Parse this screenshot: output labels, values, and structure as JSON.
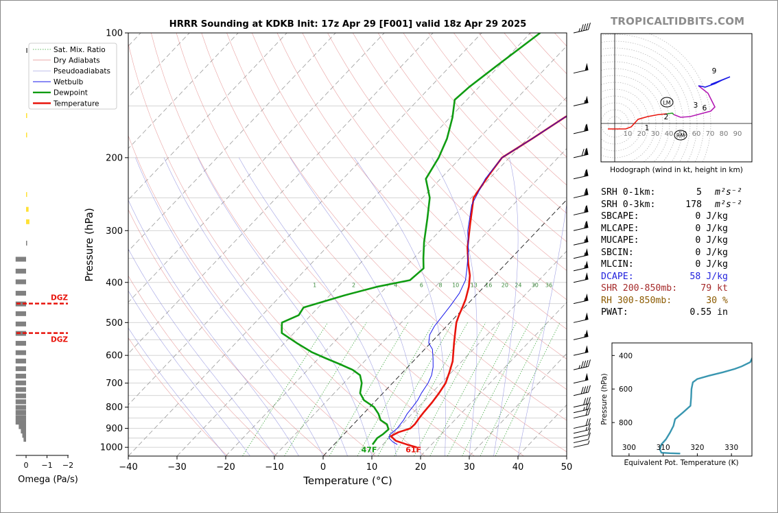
{
  "title": "HRRR Sounding at KDKB Init: 17z Apr 29 [F001] valid 18z Apr 29 2025",
  "brand": "TROPICALTIDBITS.COM",
  "chart_data": [
    {
      "type": "line",
      "name": "skew-t",
      "xlabel": "Temperature (°C)",
      "ylabel": "Pressure (hPa)",
      "xlim": [
        -40,
        50
      ],
      "ylim": [
        1050,
        100
      ],
      "y_scale": "log",
      "x_ticks": [
        -40,
        -30,
        -20,
        -10,
        0,
        10,
        20,
        30,
        40,
        50
      ],
      "x_tick_labels": [
        "−40",
        "−30",
        "−20",
        "−10",
        "0",
        "10",
        "20",
        "30",
        "40",
        "50"
      ],
      "y_ticks": [
        100,
        200,
        300,
        400,
        500,
        600,
        700,
        800,
        900,
        1000
      ],
      "mixing_ratio_labels": [
        "1",
        "2",
        "4",
        "6",
        "8",
        "10",
        "13",
        "16",
        "20",
        "24",
        "30",
        "36"
      ],
      "legend": [
        "Sat. Mix. Ratio",
        "Dry Adiabats",
        "Pseudoadiabats",
        "Wetbulb",
        "Dewpoint",
        "Temperature"
      ],
      "legend_position": "upper-left",
      "series": [
        {
          "name": "Temperature",
          "color": "#e8140c",
          "points": [
            [
              17.5,
              1000
            ],
            [
              15,
              985
            ],
            [
              12,
              965
            ],
            [
              10,
              940
            ],
            [
              10.8,
              920
            ],
            [
              12.5,
              900
            ],
            [
              12.6,
              880
            ],
            [
              12.3,
              850
            ],
            [
              12.1,
              820
            ],
            [
              11.9,
              780
            ],
            [
              11.5,
              740
            ],
            [
              10.9,
              700
            ],
            [
              9.6,
              660
            ],
            [
              8.1,
              620
            ],
            [
              6.5,
              590
            ],
            [
              4.8,
              560
            ],
            [
              3.1,
              530
            ],
            [
              1.3,
              500
            ],
            [
              0.4,
              480
            ],
            [
              -0.4,
              460
            ],
            [
              -1.3,
              440
            ],
            [
              -3.1,
              410
            ],
            [
              -5.1,
              385
            ],
            [
              -7.8,
              360
            ],
            [
              -11,
              330
            ],
            [
              -15,
              290
            ],
            [
              -19.5,
              250
            ],
            [
              -20.8,
              220
            ],
            [
              -21.5,
              200
            ],
            [
              -19,
              180
            ],
            [
              -16.5,
              160
            ],
            [
              -12.5,
              140
            ],
            [
              -9,
              125
            ],
            [
              -4.5,
              110
            ],
            [
              0,
              100
            ]
          ]
        },
        {
          "name": "Dewpoint",
          "color": "#109c12",
          "points": [
            [
              7.9,
              985
            ],
            [
              7.6,
              950
            ],
            [
              8.0,
              930
            ],
            [
              8.2,
              905
            ],
            [
              6.9,
              880
            ],
            [
              4.8,
              860
            ],
            [
              3.1,
              830
            ],
            [
              0.9,
              800
            ],
            [
              -2.5,
              770
            ],
            [
              -4.7,
              740
            ],
            [
              -6.3,
              700
            ],
            [
              -8.2,
              670
            ],
            [
              -10.8,
              650
            ],
            [
              -14.5,
              630
            ],
            [
              -18.5,
              610
            ],
            [
              -22.5,
              590
            ],
            [
              -27.5,
              560
            ],
            [
              -32.5,
              530
            ],
            [
              -33.5,
              515
            ],
            [
              -34.5,
              500
            ],
            [
              -32.5,
              480
            ],
            [
              -33,
              460
            ],
            [
              -27,
              430
            ],
            [
              -22,
              410
            ],
            [
              -16.5,
              395
            ],
            [
              -16,
              370
            ],
            [
              -18,
              350
            ],
            [
              -21,
              320
            ],
            [
              -25,
              280
            ],
            [
              -28.5,
              250
            ],
            [
              -33,
              225
            ],
            [
              -34.5,
              200
            ],
            [
              -36.5,
              180
            ],
            [
              -39.5,
              160
            ],
            [
              -42.5,
              145
            ],
            [
              -42,
              135
            ],
            [
              -40.5,
              120
            ],
            [
              -38,
              100
            ]
          ]
        },
        {
          "name": "Wetbulb",
          "color": "#1515ea",
          "points": [
            [
              13,
              985
            ],
            [
              11.5,
              970
            ],
            [
              10,
              950
            ],
            [
              9.5,
              930
            ],
            [
              9.8,
              900
            ],
            [
              9.5,
              860
            ],
            [
              9,
              830
            ],
            [
              8.8,
              800
            ],
            [
              8.5,
              770
            ],
            [
              7.9,
              740
            ],
            [
              7.3,
              700
            ],
            [
              6.5,
              670
            ],
            [
              5.2,
              640
            ],
            [
              3.5,
              610
            ],
            [
              1.6,
              580
            ],
            [
              -0.4,
              560
            ],
            [
              -1.8,
              535
            ],
            [
              -2.5,
              510
            ],
            [
              -2.8,
              485
            ],
            [
              -3.2,
              455
            ],
            [
              -3.8,
              425
            ],
            [
              -5.1,
              395
            ],
            [
              -7.1,
              370
            ],
            [
              -10.3,
              335
            ],
            [
              -14.3,
              300
            ],
            [
              -18.5,
              260
            ],
            [
              -20.8,
              225
            ],
            [
              -21.5,
              200
            ],
            [
              -19,
              180
            ],
            [
              -16.5,
              160
            ],
            [
              -12.8,
              140
            ],
            [
              -9.5,
              125
            ],
            [
              -5,
              110
            ],
            [
              0,
              100
            ]
          ]
        }
      ],
      "annotations": [
        {
          "text": "47F",
          "color": "#109c12",
          "x": 7.9,
          "p": 1005
        },
        {
          "text": "61F",
          "color": "#e8140c",
          "x": 17.0,
          "p": 1005
        }
      ]
    },
    {
      "type": "line",
      "name": "hodograph",
      "xlabel": "Hodograph (wind in kt, height in km)",
      "ring_labels": [
        "10",
        "20",
        "30",
        "40",
        "50",
        "60",
        "70",
        "80",
        "90"
      ],
      "storm_motion_labels": [
        "LM",
        "RM"
      ],
      "height_labels": [
        "1",
        "2",
        "3",
        "6",
        "9"
      ],
      "series": [
        {
          "name": "0-3 km",
          "color": "#e8140c",
          "points": [
            [
              -5,
              -8
            ],
            [
              8,
              -8
            ],
            [
              12,
              -5
            ],
            [
              17,
              6
            ],
            [
              24,
              10
            ],
            [
              32,
              13
            ],
            [
              38,
              14
            ]
          ]
        },
        {
          "name": "3-6 km",
          "color": "#2ca02c",
          "points": [
            [
              38,
              14
            ],
            [
              42,
              15
            ],
            [
              43,
              13
            ]
          ]
        },
        {
          "name": "6-9 km",
          "color": "#b41ab4",
          "points": [
            [
              43,
              13
            ],
            [
              48,
              9
            ],
            [
              55,
              10
            ],
            [
              70,
              18
            ],
            [
              73,
              24
            ],
            [
              68,
              44
            ],
            [
              61,
              55
            ]
          ]
        },
        {
          "name": "9+ km",
          "color": "#1a1ae6",
          "points": [
            [
              61,
              55
            ],
            [
              66,
              53
            ],
            [
              73,
              58
            ],
            [
              78,
              63
            ],
            [
              84,
              68
            ],
            [
              70,
              57
            ]
          ]
        }
      ]
    },
    {
      "type": "line",
      "name": "theta-e",
      "xlabel": "Equivalent Pot. Temperature (K)",
      "ylabel": "Pressure (hPa)",
      "xlim": [
        295,
        336
      ],
      "ylim": [
        1000,
        325
      ],
      "x_ticks": [
        300,
        310,
        320,
        330
      ],
      "y_ticks": [
        400,
        600,
        800
      ],
      "series": [
        {
          "name": "Theta-E",
          "color": "#3996b0",
          "points": [
            [
              315,
              985
            ],
            [
              312,
              983
            ],
            [
              309.5,
              980
            ],
            [
              309,
              960
            ],
            [
              309.5,
              930
            ],
            [
              310.8,
              900
            ],
            [
              312,
              860
            ],
            [
              313,
              820
            ],
            [
              313.5,
              780
            ],
            [
              315.8,
              740
            ],
            [
              318,
              700
            ],
            [
              318.2,
              650
            ],
            [
              318.3,
              600
            ],
            [
              318.7,
              560
            ],
            [
              320,
              540
            ],
            [
              323.5,
              520
            ],
            [
              327.5,
              500
            ],
            [
              331,
              480
            ],
            [
              333,
              465
            ],
            [
              335.5,
              440
            ],
            [
              336.2,
              410
            ],
            [
              336.4,
              370
            ],
            [
              336.6,
              330
            ]
          ]
        }
      ]
    },
    {
      "type": "bar",
      "name": "omega",
      "xlabel": "Omega (Pa/s)",
      "x_ticks": [
        0,
        -1,
        -2
      ],
      "x_tick_labels": [
        "0",
        "−1",
        "−2"
      ],
      "dgz_label": "DGZ",
      "bars": [
        {
          "p": 110,
          "value": -0.07,
          "color": "#808080"
        },
        {
          "p": 158,
          "value": -0.05,
          "color": "#ffe135"
        },
        {
          "p": 176,
          "value": -0.04,
          "color": "#ffe135"
        },
        {
          "p": 245,
          "value": -0.03,
          "color": "#ffe135"
        },
        {
          "p": 266,
          "value": -0.12,
          "color": "#ffe135"
        },
        {
          "p": 285,
          "value": -0.16,
          "color": "#ffe135"
        },
        {
          "p": 321,
          "value": -0.05,
          "color": "#808080"
        },
        {
          "p": 351,
          "value": 0.5,
          "color": "#808080"
        },
        {
          "p": 375,
          "value": 0.5,
          "color": "#808080"
        },
        {
          "p": 398,
          "value": 0.5,
          "color": "#808080"
        },
        {
          "p": 424,
          "value": 0.5,
          "color": "#808080"
        },
        {
          "p": 450,
          "value": 0.5,
          "color": "#808080"
        },
        {
          "p": 475,
          "value": 0.5,
          "color": "#808080"
        },
        {
          "p": 503,
          "value": 0.5,
          "color": "#808080"
        },
        {
          "p": 530,
          "value": 0.5,
          "color": "#808080"
        },
        {
          "p": 560,
          "value": 0.5,
          "color": "#808080"
        },
        {
          "p": 590,
          "value": 0.5,
          "color": "#808080"
        },
        {
          "p": 618,
          "value": 0.5,
          "color": "#808080"
        },
        {
          "p": 645,
          "value": 0.5,
          "color": "#808080"
        },
        {
          "p": 672,
          "value": 0.5,
          "color": "#808080"
        },
        {
          "p": 698,
          "value": 0.5,
          "color": "#808080"
        },
        {
          "p": 724,
          "value": 0.5,
          "color": "#808080"
        },
        {
          "p": 750,
          "value": 0.5,
          "color": "#808080"
        },
        {
          "p": 775,
          "value": 0.5,
          "color": "#808080"
        },
        {
          "p": 800,
          "value": 0.5,
          "color": "#808080"
        },
        {
          "p": 823,
          "value": 0.5,
          "color": "#808080"
        },
        {
          "p": 846,
          "value": 0.5,
          "color": "#808080"
        },
        {
          "p": 868,
          "value": 0.5,
          "color": "#808080"
        },
        {
          "p": 890,
          "value": 0.35,
          "color": "#808080"
        },
        {
          "p": 912,
          "value": 0.25,
          "color": "#808080"
        },
        {
          "p": 934,
          "value": 0.18,
          "color": "#808080"
        },
        {
          "p": 955,
          "value": 0.12,
          "color": "#808080"
        }
      ],
      "dgz_pressures": [
        450,
        530
      ]
    }
  ],
  "stats": [
    {
      "label": "SRH 0-1km:",
      "value": "5",
      "unit_html": "m²s⁻²",
      "color": "#000000"
    },
    {
      "label": "SRH 0-3km:",
      "value": "178",
      "unit_html": "m²s⁻²",
      "color": "#000000"
    },
    {
      "label": "SBCAPE:",
      "value": "0 J/kg",
      "color": "#000000"
    },
    {
      "label": "MLCAPE:",
      "value": "0 J/kg",
      "color": "#000000"
    },
    {
      "label": "MUCAPE:",
      "value": "0 J/kg",
      "color": "#000000"
    },
    {
      "label": "SBCIN:",
      "value": "0 J/kg",
      "color": "#000000"
    },
    {
      "label": "MLCIN:",
      "value": "0 J/kg",
      "color": "#000000"
    },
    {
      "label": "DCAPE:",
      "value": "58 J/kg",
      "color": "#2222dd"
    },
    {
      "label": "SHR 200-850mb:",
      "value": "79 kt",
      "color": "#a52a2a"
    },
    {
      "label": "RH 300-850mb:",
      "value": "30 %",
      "color": "#8b5a00"
    },
    {
      "label": "PWAT:",
      "value": "0.55 in",
      "color": "#000000"
    }
  ],
  "wind_barbs": [
    {
      "p": 100,
      "spd": 45
    },
    {
      "p": 125,
      "spd": 50
    },
    {
      "p": 150,
      "spd": 55
    },
    {
      "p": 175,
      "spd": 60
    },
    {
      "p": 200,
      "spd": 70
    },
    {
      "p": 225,
      "spd": 60
    },
    {
      "p": 250,
      "spd": 60
    },
    {
      "p": 275,
      "spd": 60
    },
    {
      "p": 300,
      "spd": 60
    },
    {
      "p": 325,
      "spd": 55
    },
    {
      "p": 350,
      "spd": 55
    },
    {
      "p": 375,
      "spd": 55
    },
    {
      "p": 400,
      "spd": 50
    },
    {
      "p": 450,
      "spd": 55
    },
    {
      "p": 500,
      "spd": 50
    },
    {
      "p": 550,
      "spd": 55
    },
    {
      "p": 600,
      "spd": 50
    },
    {
      "p": 650,
      "spd": 45
    },
    {
      "p": 700,
      "spd": 50
    },
    {
      "p": 750,
      "spd": 40
    },
    {
      "p": 800,
      "spd": 30
    },
    {
      "p": 825,
      "spd": 25
    },
    {
      "p": 850,
      "spd": 20
    },
    {
      "p": 900,
      "spd": 20
    },
    {
      "p": 925,
      "spd": 15
    },
    {
      "p": 950,
      "spd": 10
    },
    {
      "p": 975,
      "spd": 10
    },
    {
      "p": 1000,
      "spd": 5
    }
  ]
}
